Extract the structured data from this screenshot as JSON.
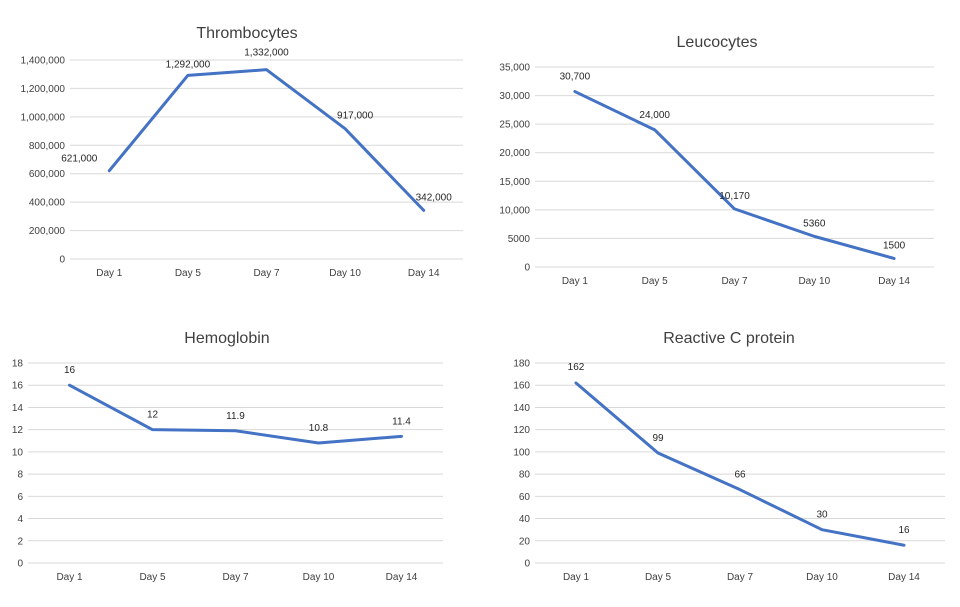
{
  "colors": {
    "series": "#4472c4",
    "grid": "#d9d9d9",
    "text": "#404040"
  },
  "chart_data": [
    {
      "type": "line",
      "title": "Thrombocytes",
      "categories": [
        "Day 1",
        "Day 5",
        "Day 7",
        "Day 10",
        "Day 14"
      ],
      "values": [
        621000,
        1292000,
        1332000,
        917000,
        342000
      ],
      "data_labels": [
        "621,000",
        "1,292,000",
        "1,332,000",
        "917,000",
        "342,000"
      ],
      "ylim": [
        0,
        1400000
      ],
      "yticks": [
        0,
        200000,
        400000,
        600000,
        800000,
        1000000,
        1200000,
        1400000
      ],
      "ytick_labels": [
        "0",
        "200,000",
        "400,000",
        "600,000",
        "800,000",
        "1,000,000",
        "1,200,000",
        "1,400,000"
      ],
      "xlabel": "",
      "ylabel": "",
      "grid": true
    },
    {
      "type": "line",
      "title": "Leucocytes",
      "categories": [
        "Day 1",
        "Day 5",
        "Day 7",
        "Day 10",
        "Day 14"
      ],
      "values": [
        30700,
        24000,
        10170,
        5360,
        1500
      ],
      "data_labels": [
        "30,700",
        "24,000",
        "10,170",
        "5360",
        "1500"
      ],
      "ylim": [
        0,
        35000
      ],
      "yticks": [
        0,
        5000,
        10000,
        15000,
        20000,
        25000,
        30000,
        35000
      ],
      "ytick_labels": [
        "0",
        "5000",
        "10,000",
        "15,000",
        "20,000",
        "25,000",
        "30,000",
        "35,000"
      ],
      "xlabel": "",
      "ylabel": "",
      "grid": true
    },
    {
      "type": "line",
      "title": "Hemoglobin",
      "categories": [
        "Day 1",
        "Day 5",
        "Day 7",
        "Day 10",
        "Day 14"
      ],
      "values": [
        16,
        12,
        11.9,
        10.8,
        11.4
      ],
      "data_labels": [
        "16",
        "12",
        "11.9",
        "10.8",
        "11.4"
      ],
      "ylim": [
        0,
        18
      ],
      "yticks": [
        0,
        2,
        4,
        6,
        8,
        10,
        12,
        14,
        16,
        18
      ],
      "ytick_labels": [
        "0",
        "2",
        "4",
        "6",
        "8",
        "10",
        "12",
        "14",
        "16",
        "18"
      ],
      "xlabel": "",
      "ylabel": "",
      "grid": true
    },
    {
      "type": "line",
      "title": "Reactive C protein",
      "categories": [
        "Day 1",
        "Day 5",
        "Day 7",
        "Day 10",
        "Day 14"
      ],
      "values": [
        162,
        99,
        66,
        30,
        16
      ],
      "data_labels": [
        "162",
        "99",
        "66",
        "30",
        "16"
      ],
      "ylim": [
        0,
        180
      ],
      "yticks": [
        0,
        20,
        40,
        60,
        80,
        100,
        120,
        140,
        160,
        180
      ],
      "ytick_labels": [
        "0",
        "20",
        "40",
        "60",
        "80",
        "100",
        "120",
        "140",
        "160",
        "180"
      ],
      "xlabel": "",
      "ylabel": "",
      "grid": true
    }
  ]
}
